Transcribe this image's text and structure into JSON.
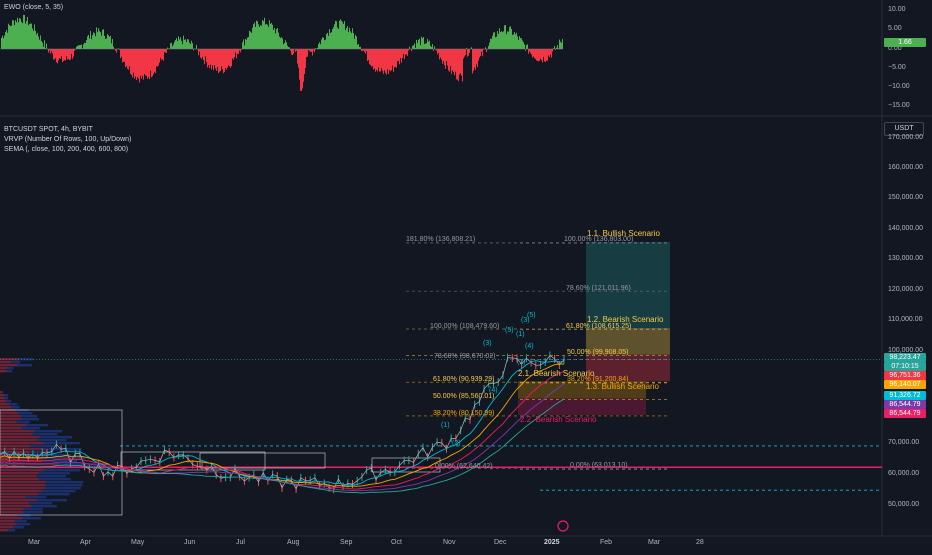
{
  "ewo_panel": {
    "title": "EWO (close, 5, 35)",
    "ticks": [
      "10.00",
      "5.00",
      "0.00",
      "−5.00",
      "−10.00",
      "−15.00"
    ],
    "current_badge": "1.66",
    "colors": {
      "positive": "#4caf50",
      "negative": "#f23645"
    }
  },
  "main_panel": {
    "symbol_line": "BTCUSDT SPOT, 4h, BYBIT",
    "indicator_1": "VRVP (Number Of Rows, 100, Up/Down)",
    "indicator_2": "SEMA (, close, 100, 200, 400, 600, 800)",
    "currency_button": "USDT",
    "price_ticks": [
      "170,000.00",
      "160,000.00",
      "150,000.00",
      "140,000.00",
      "130,000.00",
      "120,000.00",
      "110,000.00",
      "100,000.00",
      "70,000.00",
      "60,000.00",
      "50,000.00"
    ],
    "price_badges": [
      {
        "text": "98,223.47",
        "color": "#26a69a"
      },
      {
        "text": "07:10:15",
        "color": "#26a69a"
      },
      {
        "text": "96,751.36",
        "color": "#f23645"
      },
      {
        "text": "96,140.07",
        "color": "#f7a600"
      },
      {
        "text": "91,326.72",
        "color": "#00bcd4"
      },
      {
        "text": "86,544.79",
        "color": "#7b3aa8"
      },
      {
        "text": "86,544.79",
        "color": "#e91e63"
      }
    ],
    "time_ticks": [
      "Mar",
      "Apr",
      "May",
      "Jun",
      "Jul",
      "Aug",
      "Sep",
      "Oct",
      "Nov",
      "Dec",
      "2025",
      "Feb",
      "Mar",
      "28"
    ]
  },
  "fib_levels": [
    {
      "text": "181.80% (136,808.21)",
      "price": 136808.21,
      "color": "#9598a1"
    },
    {
      "text": "100.00% (136,803.00)",
      "price": 136803.0,
      "color": "#9598a1"
    },
    {
      "text": "78.60% (121,011.96)",
      "price": 121011.96,
      "color": "#9598a1"
    },
    {
      "text": "100.00% (108,479.60)",
      "price": 108479.6,
      "color": "#9598a1"
    },
    {
      "text": "61.80% (108,615.25)",
      "price": 108615.25,
      "color": "#f7c948"
    },
    {
      "text": "78.60% (98,670.02)",
      "price": 98670.02,
      "color": "#9598a1"
    },
    {
      "text": "50.00% (99,908.05)",
      "price": 99908.05,
      "color": "#f7c948"
    },
    {
      "text": "61.80% (90,939.29)",
      "price": 90939.29,
      "color": "#f7c948"
    },
    {
      "text": "38.20% (91,200.84)",
      "price": 91200.84,
      "color": "#f7a600"
    },
    {
      "text": "50.00% (85,560.01)",
      "price": 85560.01,
      "color": "#f7c948"
    },
    {
      "text": "38.20% (80,150.99)",
      "price": 80150.99,
      "color": "#f7a600"
    },
    {
      "text": "0.00% (62,640.42)",
      "price": 62640.42,
      "color": "#9598a1"
    },
    {
      "text": "0.00% (63,013.10)",
      "price": 63013.1,
      "color": "#9598a1"
    }
  ],
  "scenarios": [
    {
      "text": "1.1. Bullish Scenario",
      "color": "#f7c948"
    },
    {
      "text": "1.2. Bearish Scenario",
      "color": "#f7c948"
    },
    {
      "text": "2.1. Bearish Scenario",
      "color": "#f7c948"
    },
    {
      "text": "1.3. Bullish Scenario",
      "color": "#f7a600"
    },
    {
      "text": "2.2. Bearish Scenario",
      "color": "#e91e63"
    }
  ],
  "wave_labels": [
    "(1)",
    "(2)",
    "(3)",
    "(4)",
    "(5)",
    "(1)",
    "(2)",
    "(3)",
    "(4)",
    "(5)"
  ],
  "chart_data": {
    "type": "line",
    "title": "BTCUSDT SPOT, 4h, BYBIT",
    "x": [
      "Mar",
      "Apr",
      "May",
      "Jun",
      "Jul",
      "Aug",
      "Sep",
      "Oct",
      "Nov",
      "Dec",
      "2025"
    ],
    "series": [
      {
        "values": [
          66000,
          68500,
          61000,
          68000,
          61000,
          58000,
          57500,
          63000,
          72000,
          97000,
          98223
        ]
      }
    ],
    "ylim": [
      45000,
      175000
    ],
    "grid": false,
    "key_levels": [
      70000,
      63000,
      55500
    ]
  }
}
